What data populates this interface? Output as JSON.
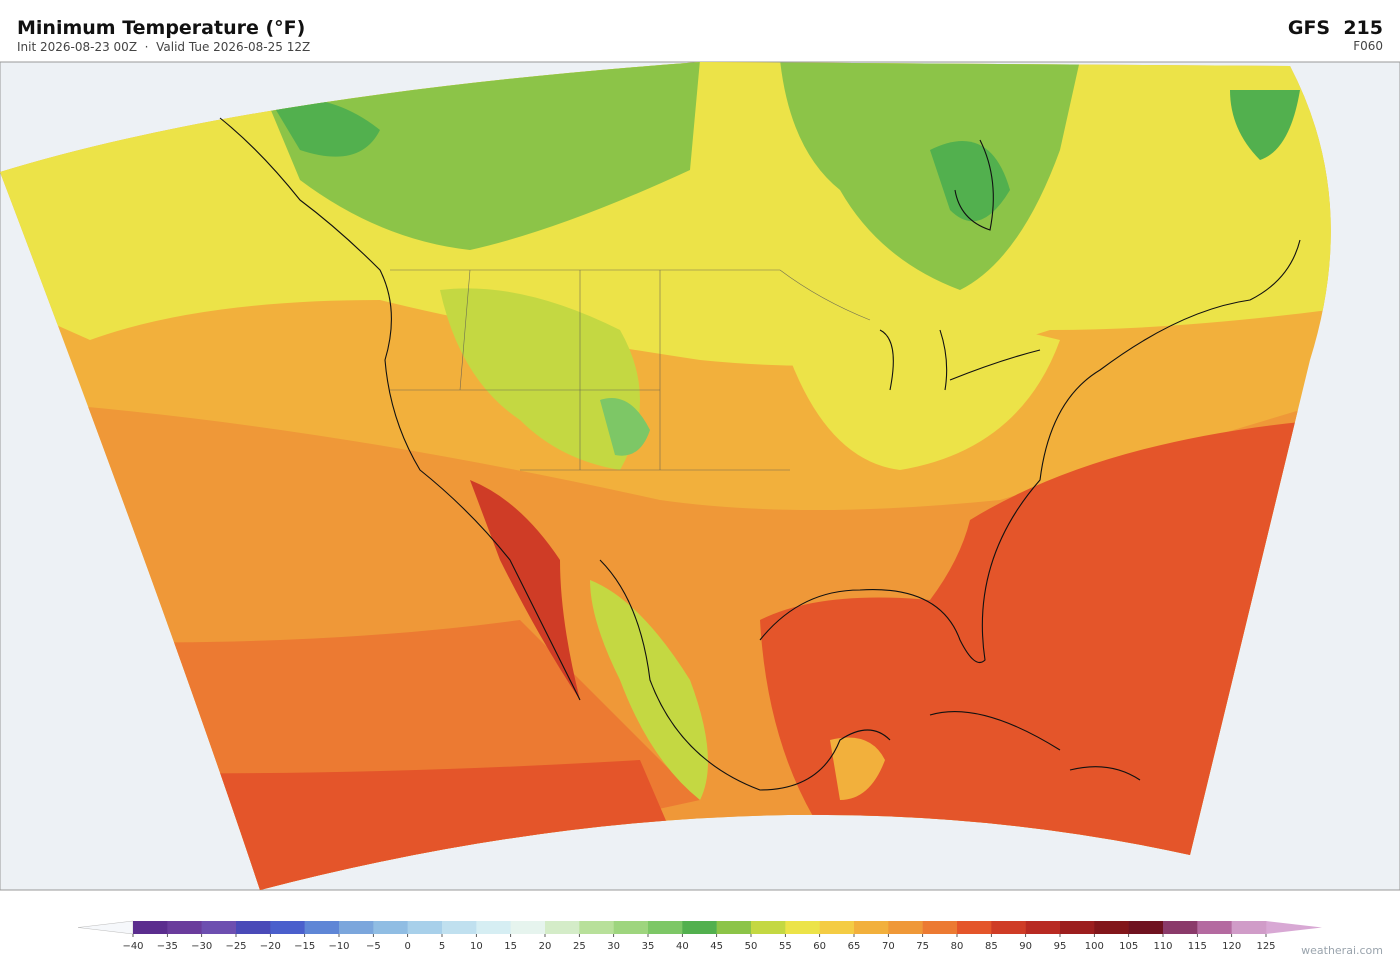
{
  "header": {
    "title": "Minimum Temperature  (°F)",
    "subtitle": "Init 2026-08-23 00Z  ·  Valid Tue 2026-08-25 12Z",
    "model": "GFS  215",
    "forecast_hour": "F060"
  },
  "colorbar": {
    "ticks": [
      {
        "value": -40,
        "label": "−40"
      },
      {
        "value": -35,
        "label": "−35"
      },
      {
        "value": -30,
        "label": "−30"
      },
      {
        "value": -25,
        "label": "−25"
      },
      {
        "value": -20,
        "label": "−20"
      },
      {
        "value": -15,
        "label": "−15"
      },
      {
        "value": -10,
        "label": "−10"
      },
      {
        "value": -5,
        "label": "−5"
      },
      0,
      5,
      10,
      15,
      20,
      25,
      30,
      35,
      40,
      45,
      50,
      55,
      60,
      65,
      70,
      75,
      80,
      85,
      90,
      95,
      100,
      105,
      110,
      115,
      120,
      125
    ],
    "colors": [
      "#5b2d8e",
      "#6a3c9c",
      "#6d4fb0",
      "#4a4ab8",
      "#4a5fcc",
      "#5f86d6",
      "#7ba6dc",
      "#90bde3",
      "#a8d0ea",
      "#c0e0ef",
      "#d6eef3",
      "#e6f4ee",
      "#d4ecc8",
      "#b8e09a",
      "#9ed57e",
      "#7dc766",
      "#52b04e",
      "#8cc448",
      "#c4d842",
      "#ece348",
      "#f4cc44",
      "#f2b03c",
      "#ef9838",
      "#ec7a32",
      "#e4552a",
      "#cf3c26",
      "#b82a22",
      "#9c1e1e",
      "#82161a",
      "#6f1220",
      "#8a3a6a",
      "#b46aa0",
      "#d09cc8"
    ],
    "under_color": "#f6f8fb",
    "over_color": "#d8a8d4"
  },
  "watermark": "weatherai.com"
}
